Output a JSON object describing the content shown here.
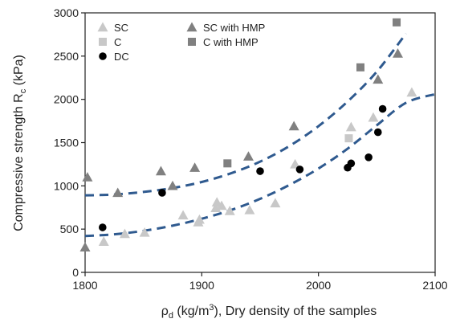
{
  "chart_data": {
    "type": "scatter",
    "xlabel": {
      "prefix": "ρ",
      "sub": "d",
      "mid": " (kg/m",
      "sup": "3",
      "suffix": "), Dry density of the samples"
    },
    "ylabel": {
      "main": "Compressive strength R",
      "sub": "c",
      "suffix": " (kPa)"
    },
    "xlim": [
      1800,
      2100
    ],
    "ylim": [
      0,
      3000
    ],
    "x_ticks": [
      1800,
      1900,
      2000,
      2100
    ],
    "y_ticks": [
      0,
      500,
      1000,
      1500,
      2000,
      2500,
      3000
    ],
    "grid": false,
    "legend_position": "top-left",
    "series": [
      {
        "name": "SC",
        "marker": "triangle",
        "color": "#c8c8c8",
        "points": [
          [
            1816,
            355
          ],
          [
            1834,
            445
          ],
          [
            1851,
            460
          ],
          [
            1884,
            660
          ],
          [
            1897,
            580
          ],
          [
            1898,
            610
          ],
          [
            1912,
            745
          ],
          [
            1913,
            810
          ],
          [
            1917,
            770
          ],
          [
            1924,
            710
          ],
          [
            1941,
            720
          ],
          [
            1963,
            800
          ],
          [
            1980,
            1250
          ],
          [
            2028,
            1680
          ],
          [
            2047,
            1790
          ],
          [
            2080,
            2080
          ]
        ]
      },
      {
        "name": "C",
        "marker": "square",
        "color": "#c8c8c8",
        "points": [
          [
            2026,
            1550
          ]
        ]
      },
      {
        "name": "DC",
        "marker": "circle",
        "color": "#000000",
        "points": [
          [
            1815,
            520
          ],
          [
            1866,
            920
          ],
          [
            1950,
            1170
          ],
          [
            1984,
            1190
          ],
          [
            2025,
            1210
          ],
          [
            2028,
            1260
          ],
          [
            2043,
            1330
          ],
          [
            2051,
            1620
          ],
          [
            2055,
            1890
          ]
        ]
      },
      {
        "name": "SC with HMP",
        "marker": "triangle",
        "color": "#808080",
        "points": [
          [
            1800,
            290
          ],
          [
            1802,
            1100
          ],
          [
            1828,
            920
          ],
          [
            1865,
            1170
          ],
          [
            1875,
            1000
          ],
          [
            1894,
            1210
          ],
          [
            1940,
            1340
          ],
          [
            1979,
            1690
          ],
          [
            2051,
            2230
          ],
          [
            2068,
            2530
          ]
        ]
      },
      {
        "name": "C with HMP",
        "marker": "square",
        "color": "#808080",
        "points": [
          [
            1922,
            1260
          ],
          [
            2036,
            2370
          ],
          [
            2067,
            2890
          ]
        ]
      }
    ],
    "trend_lines": [
      {
        "style": "dashed",
        "color": "#2f5a8f",
        "points": [
          [
            1800,
            890
          ],
          [
            1825,
            900
          ],
          [
            1850,
            930
          ],
          [
            1875,
            975
          ],
          [
            1900,
            1045
          ],
          [
            1925,
            1145
          ],
          [
            1950,
            1280
          ],
          [
            1975,
            1460
          ],
          [
            2000,
            1690
          ],
          [
            2025,
            1975
          ],
          [
            2050,
            2320
          ],
          [
            2075,
            2760
          ]
        ]
      },
      {
        "style": "dashed",
        "color": "#2f5a8f",
        "points": [
          [
            1800,
            420
          ],
          [
            1825,
            440
          ],
          [
            1850,
            480
          ],
          [
            1875,
            540
          ],
          [
            1900,
            620
          ],
          [
            1925,
            720
          ],
          [
            1950,
            850
          ],
          [
            1975,
            1010
          ],
          [
            2000,
            1200
          ],
          [
            2025,
            1430
          ],
          [
            2050,
            1700
          ],
          [
            2075,
            1960
          ],
          [
            2100,
            2060
          ]
        ]
      }
    ]
  }
}
